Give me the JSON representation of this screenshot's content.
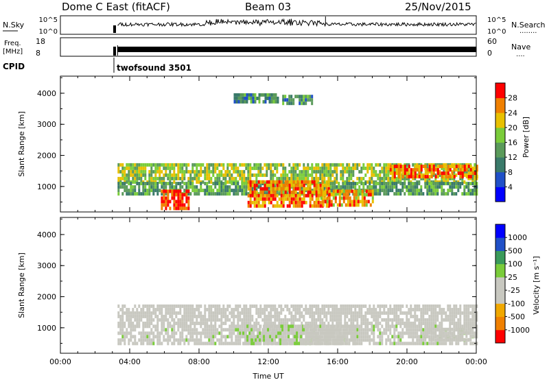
{
  "header": {
    "station": "Dome C East (fitACF)",
    "beam": "Beam 03",
    "date": "25/Nov/2015"
  },
  "nsky_panel": {
    "left_label": "N.Sky",
    "left_ticks": [
      "10^5",
      "10^0"
    ],
    "right_ticks": [
      "10^5",
      "10^0"
    ],
    "right_label": "N.Search",
    "right_dots": "........"
  },
  "freq_panel": {
    "left_label_line1": "Freq.",
    "left_label_line2": "[MHz]",
    "left_ticks": [
      "18",
      "8"
    ],
    "right_ticks": [
      "60",
      "0"
    ],
    "right_label": "Nave",
    "right_dots": "...."
  },
  "cpid": {
    "label": "CPID",
    "program": "twofsound 3501"
  },
  "chart_data": [
    {
      "type": "heatmap",
      "panel": "power",
      "ylabel": "Slant Range [km]",
      "yticks": [
        "1000",
        "2000",
        "3000",
        "4000"
      ],
      "ylim": [
        180,
        4550
      ],
      "xlim": [
        0,
        24
      ],
      "colorbar_label": "Power [dB]",
      "colorbar_ticks": [
        "4",
        "8",
        "12",
        "16",
        "20",
        "24",
        "28"
      ],
      "colorbar_range": [
        0,
        32
      ],
      "colors": [
        "#0000ff",
        "#2050c8",
        "#3a7a6a",
        "#5a9a5a",
        "#7acc3a",
        "#e8c000",
        "#f08000",
        "#ff0000"
      ],
      "echo_regions": [
        {
          "t0": 3.3,
          "t1": 24.0,
          "r0": 1150,
          "r1": 1750,
          "level": 18
        },
        {
          "t0": 3.3,
          "t1": 24.0,
          "r0": 750,
          "r1": 1150,
          "level": 14
        },
        {
          "t0": 5.8,
          "t1": 7.4,
          "r0": 250,
          "r1": 900,
          "level": 30
        },
        {
          "t0": 10.8,
          "t1": 15.5,
          "r0": 400,
          "r1": 1200,
          "level": 26
        },
        {
          "t0": 15.0,
          "t1": 18.0,
          "r0": 350,
          "r1": 900,
          "level": 24
        },
        {
          "t0": 19.0,
          "t1": 24.0,
          "r0": 1300,
          "r1": 1700,
          "level": 26
        },
        {
          "t0": 10.0,
          "t1": 12.5,
          "r0": 3700,
          "r1": 4000,
          "level": 12
        },
        {
          "t0": 12.8,
          "t1": 14.5,
          "r0": 3700,
          "r1": 3950,
          "level": 12
        }
      ]
    },
    {
      "type": "heatmap",
      "panel": "velocity",
      "ylabel": "Slant Range [km]",
      "yticks": [
        "1000",
        "2000",
        "3000",
        "4000"
      ],
      "ylim": [
        180,
        4550
      ],
      "xlim": [
        0,
        24
      ],
      "xticks": [
        "00:00",
        "04:00",
        "08:00",
        "12:00",
        "16:00",
        "20:00",
        "00:00"
      ],
      "xlabel": "Time UT",
      "colorbar_label": "Velocity [m s⁻¹]",
      "colorbar_ticks": [
        "1000",
        "500",
        "100",
        "25",
        "-25",
        "-100",
        "-500",
        "-1000"
      ],
      "colorbar_range": [
        -1500,
        1500
      ],
      "colors": [
        "#ff0000",
        "#f08000",
        "#f0a800",
        "#c8c8c0",
        "#c8c8c0",
        "#7acc3a",
        "#3a9a5a",
        "#2050c8",
        "#0000ff"
      ],
      "echo_regions": [
        {
          "t0": 3.3,
          "t1": 24.0,
          "r0": 1150,
          "r1": 1750,
          "level": 0
        },
        {
          "t0": 3.3,
          "t1": 24.0,
          "r0": 500,
          "r1": 1100,
          "level": 60
        },
        {
          "t0": 10.5,
          "t1": 14.0,
          "r0": 500,
          "r1": 1100,
          "level": 120
        },
        {
          "t0": 14.0,
          "t1": 17.0,
          "r0": 500,
          "r1": 1100,
          "level": -150
        },
        {
          "t0": 21.0,
          "t1": 23.8,
          "r0": 600,
          "r1": 1000,
          "level": -300
        }
      ]
    }
  ]
}
